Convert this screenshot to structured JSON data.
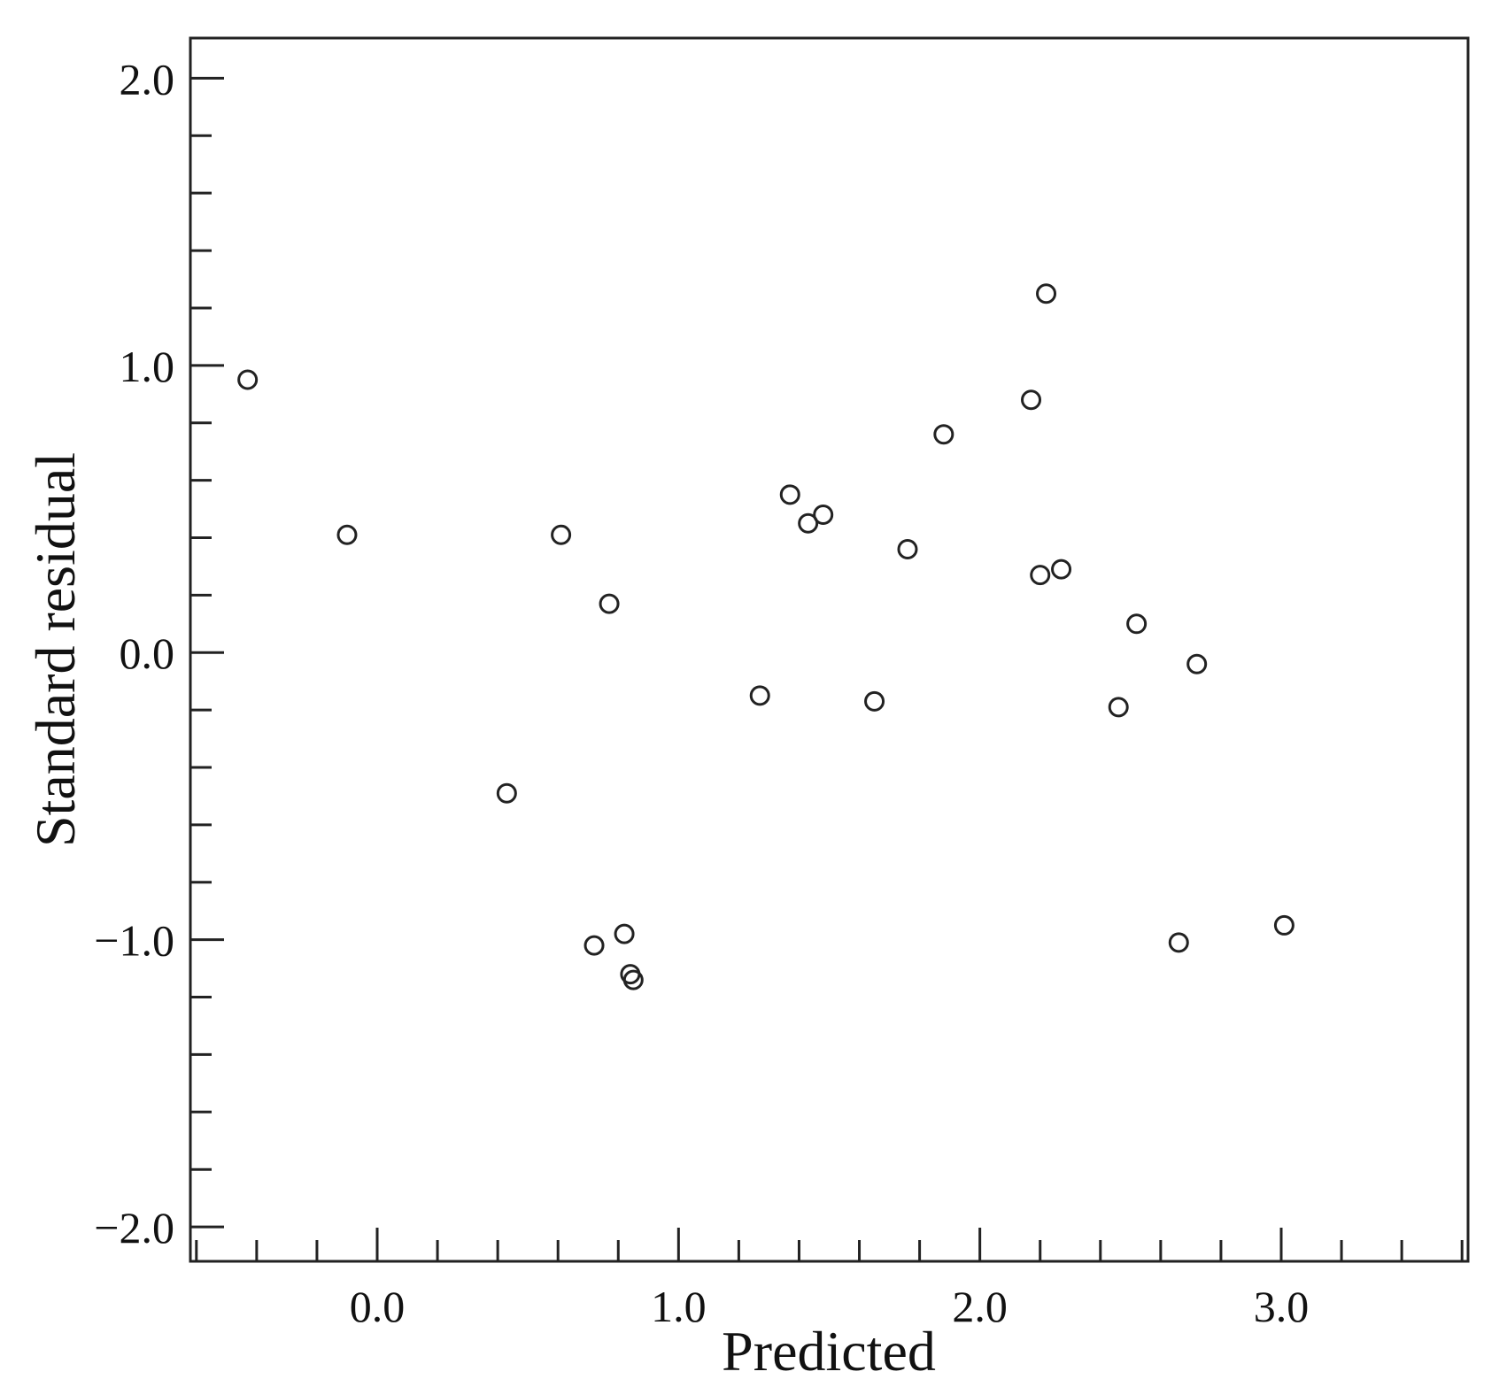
{
  "chart_data": {
    "type": "scatter",
    "title": "",
    "xlabel": "Predicted",
    "ylabel": "Standard residual",
    "xlim": [
      -0.62,
      3.62
    ],
    "ylim": [
      -2.12,
      2.14
    ],
    "x_ticks": [
      0.0,
      1.0,
      2.0,
      3.0
    ],
    "x_tick_labels": [
      "0.0",
      "1.0",
      "2.0",
      "3.0"
    ],
    "x_minor_step": 0.2,
    "y_ticks": [
      2.0,
      1.0,
      0.0,
      -1.0,
      -2.0
    ],
    "y_tick_labels": [
      "2.0",
      "1.0",
      "0.0",
      "−1.0",
      "−2.0"
    ],
    "y_minor_step": 0.2,
    "grid": false,
    "legend": "none",
    "marker": "open-circle",
    "colors": {
      "marker_stroke": "#222222",
      "axis": "#222222"
    },
    "series": [
      {
        "points": [
          {
            "x": -0.43,
            "y": 0.95
          },
          {
            "x": -0.1,
            "y": 0.41
          },
          {
            "x": 0.43,
            "y": -0.49
          },
          {
            "x": 0.61,
            "y": 0.41
          },
          {
            "x": 0.72,
            "y": -1.02
          },
          {
            "x": 0.77,
            "y": 0.17
          },
          {
            "x": 0.82,
            "y": -0.98
          },
          {
            "x": 0.84,
            "y": -1.12
          },
          {
            "x": 0.85,
            "y": -1.14
          },
          {
            "x": 1.27,
            "y": -0.15
          },
          {
            "x": 1.37,
            "y": 0.55
          },
          {
            "x": 1.43,
            "y": 0.45
          },
          {
            "x": 1.48,
            "y": 0.48
          },
          {
            "x": 1.65,
            "y": -0.17
          },
          {
            "x": 1.76,
            "y": 0.36
          },
          {
            "x": 1.88,
            "y": 0.76
          },
          {
            "x": 2.17,
            "y": 0.88
          },
          {
            "x": 2.2,
            "y": 0.27
          },
          {
            "x": 2.22,
            "y": 1.25
          },
          {
            "x": 2.27,
            "y": 0.29
          },
          {
            "x": 2.46,
            "y": -0.19
          },
          {
            "x": 2.52,
            "y": 0.1
          },
          {
            "x": 2.66,
            "y": -1.01
          },
          {
            "x": 2.72,
            "y": -0.04
          },
          {
            "x": 3.01,
            "y": -0.95
          }
        ]
      }
    ]
  }
}
